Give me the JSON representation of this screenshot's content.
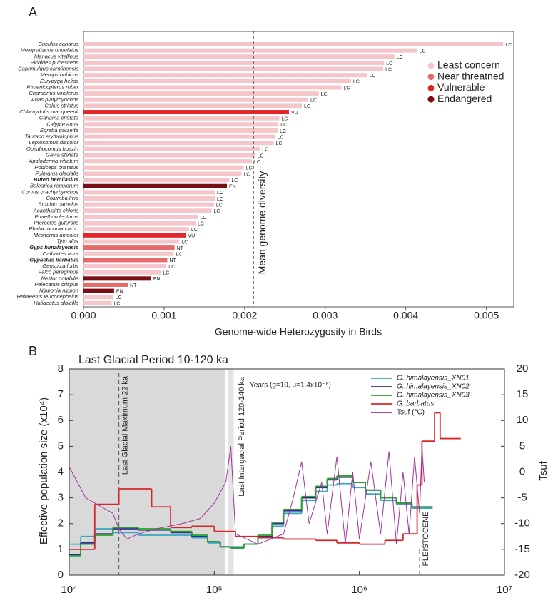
{
  "chart_data": [
    {
      "type": "hbar",
      "panel": "A",
      "categories": [
        "Cuculus canorus",
        "Melopsittacus undulatus",
        "Manacus vitellinus",
        "Picoides pubescens",
        "Caprimulgus carolinensis",
        "Merops nubicus",
        "Eurypyga helias",
        "Phoenicopterus ruber",
        "Charadrius vociferus",
        "Anas platyrhynchos",
        "Colius striatus",
        "Chlamydotis macqueenii",
        "Cariama cristata",
        "Calypte anna",
        "Egretta garzetta",
        "Tauraco erythrolophus",
        "Leptosomus discolor",
        "Opisthocomus hoazin",
        "Gavia stellata",
        "Apaloderma vittatum",
        "Podiceps cristatus",
        "Fulmarus glacialis",
        "Buteo hemilasius",
        "Balearica regulorum",
        "Corvus brachyrhynchos",
        "Columba livia",
        "Struthio camelus",
        "Acanthisitta chloris",
        "Phaethon lepturus",
        "Pterocles guturalis",
        "Phalacrocorax carbo",
        "Mesitornis unicolor",
        "Tyto alba",
        "Gyps himalayensis",
        "Cathartes aura",
        "Gypaetus barbatus",
        "Geospiza fortis",
        "Falco peregrinus",
        "Nestor notabilis",
        "Pelecanus crispus",
        "Nipponia nippon",
        "Haliaeetus leucocephalus",
        "Haliaeetus albicilla"
      ],
      "values": [
        0.00521,
        0.00414,
        0.00386,
        0.00373,
        0.00372,
        0.00352,
        0.00332,
        0.0032,
        0.00292,
        0.00279,
        0.00271,
        0.00255,
        0.00243,
        0.00242,
        0.00241,
        0.00238,
        0.00236,
        0.00219,
        0.00213,
        0.00209,
        0.00199,
        0.00196,
        0.00181,
        0.00178,
        0.00163,
        0.00163,
        0.00162,
        0.00159,
        0.00142,
        0.00139,
        0.00131,
        0.00127,
        0.00119,
        0.00113,
        0.00112,
        0.00104,
        0.00103,
        0.00096,
        0.00084,
        0.00055,
        0.00038,
        0.00037,
        0.00035
      ],
      "statuses": [
        "LC",
        "LC",
        "LC",
        "LC",
        "LC",
        "LC",
        "LC",
        "LC",
        "LC",
        "LC",
        "LC",
        "VU",
        "LC",
        "LC",
        "LC",
        "LC",
        "LC",
        "LC",
        "LC",
        "LC",
        "LC",
        "LC",
        "LC",
        "EN",
        "LC",
        "LC",
        "LC",
        "LC",
        "LC",
        "LC",
        "LC",
        "VU",
        "LC",
        "NT",
        "LC",
        "NT",
        "LC",
        "LC",
        "EN",
        "NT",
        "EN",
        "LC",
        "LC"
      ],
      "label_colors": [
        "#222",
        "#222",
        "#222",
        "#222",
        "#222",
        "#222",
        "#222",
        "#222",
        "#222",
        "#222",
        "#222",
        "#222",
        "#222",
        "#222",
        "#222",
        "#222",
        "#222",
        "#222",
        "#222",
        "#222",
        "#222",
        "#222",
        "#3b8fd9",
        "#222",
        "#222",
        "#222",
        "#222",
        "#222",
        "#222",
        "#222",
        "#222",
        "#222",
        "#222",
        "#3b8fd9",
        "#222",
        "#3b8fd9",
        "#222",
        "#222",
        "#222",
        "#222",
        "#222",
        "#222",
        "#222"
      ],
      "legend": [
        {
          "name": "Least concern",
          "code": "LC",
          "color": "#f4c6ca"
        },
        {
          "name": "Near threatned",
          "code": "NT",
          "color": "#e56a6a"
        },
        {
          "name": "Vulnerable",
          "code": "VU",
          "color": "#e2262b"
        },
        {
          "name": "Endangered",
          "code": "EN",
          "color": "#7a1014"
        }
      ],
      "mean": {
        "value": 0.00211,
        "label": "Mean genome diversity"
      },
      "xlabel": "Genome-wide Heterozygosity in Birds",
      "xlim": [
        0,
        0.00534
      ],
      "xticks": [
        {
          "value": 0,
          "label": "0.000"
        },
        0.001,
        0.002,
        0.003,
        0.004,
        0.005
      ]
    },
    {
      "type": "step",
      "panel": "B",
      "title": "Last Glacial Period 10-120 ka",
      "xscale": "log",
      "xlim": [
        10000,
        10000000
      ],
      "xticks": [
        {
          "value": 10000,
          "label": "10⁴"
        },
        {
          "value": 100000,
          "label": "10⁵"
        },
        {
          "value": 1000000,
          "label": "10⁶"
        },
        {
          "value": 10000000,
          "label": "10⁷"
        }
      ],
      "ylim": [
        0,
        8
      ],
      "yticks": [
        0,
        1,
        2,
        3,
        4,
        5,
        6,
        7,
        8
      ],
      "y2lim": [
        -20,
        20
      ],
      "y2ticks": [
        -20,
        -15,
        -10,
        -5,
        0,
        5,
        10,
        15,
        20
      ],
      "ylabel": "Effective population size (x10⁴)",
      "y2label": "Tsuf",
      "regions": [
        {
          "x": [
            10000,
            118000
          ],
          "color": "#d9d9d9"
        },
        {
          "x": [
            125000,
            136000
          ],
          "color": "#e3e3e3"
        }
      ],
      "annotations": [
        {
          "text": "Last Glacial Maximum 22 ka",
          "x": 22000
        },
        {
          "text": "Last Intergacial Period 120-140 ka",
          "x": 140000
        },
        {
          "text": "PLEISTOCENE",
          "x": 2600000
        },
        {
          "text": "Years (g=10, μ=1.4x10⁻⁸)"
        }
      ],
      "series": [
        {
          "name": "G. himalayensis_XN01",
          "color": "#3aa6c0",
          "edges": [
            10000,
            12000,
            15000,
            20000,
            30000,
            50000,
            70000,
            90000,
            110000,
            130000,
            160000,
            200000,
            250000,
            300000,
            400000,
            500000,
            600000,
            700000,
            900000,
            1100000,
            1400000,
            1800000,
            2300000,
            3200000
          ],
          "values": [
            1.2,
            1.5,
            1.8,
            1.65,
            1.55,
            1.55,
            1.45,
            1.25,
            1.1,
            1.1,
            1.2,
            1.45,
            1.9,
            2.4,
            2.9,
            3.25,
            3.5,
            3.55,
            3.4,
            3.15,
            2.9,
            2.75,
            2.6
          ]
        },
        {
          "name": "G. himalayensis_XN02",
          "color": "#2b2f8f",
          "edges": [
            10000,
            12000,
            15000,
            20000,
            30000,
            50000,
            70000,
            90000,
            110000,
            130000,
            160000,
            200000,
            250000,
            300000,
            400000,
            500000,
            600000,
            700000,
            900000,
            1100000,
            1400000,
            1800000,
            2300000,
            3200000
          ],
          "values": [
            0.8,
            1.25,
            1.6,
            1.8,
            1.75,
            1.65,
            1.5,
            1.3,
            1.1,
            1.05,
            1.2,
            1.5,
            2.0,
            2.5,
            3.0,
            3.4,
            3.7,
            3.8,
            3.6,
            3.3,
            3.0,
            2.8,
            2.65
          ]
        },
        {
          "name": "G. himalayensis_XN03",
          "color": "#2ca02c",
          "edges": [
            10000,
            12000,
            15000,
            20000,
            30000,
            50000,
            70000,
            90000,
            110000,
            130000,
            160000,
            200000,
            250000,
            300000,
            400000,
            500000,
            600000,
            700000,
            900000,
            1100000,
            1400000,
            1800000,
            2300000,
            3200000
          ],
          "values": [
            0.75,
            1.2,
            1.55,
            1.85,
            1.8,
            1.7,
            1.55,
            1.3,
            1.1,
            1.05,
            1.2,
            1.55,
            2.05,
            2.55,
            3.05,
            3.45,
            3.75,
            3.85,
            3.6,
            3.3,
            3.0,
            2.8,
            2.65
          ]
        },
        {
          "name": "G. barbatus",
          "color": "#d62728",
          "edges": [
            10000,
            15000,
            22000,
            37000,
            50000,
            70000,
            100000,
            140000,
            200000,
            300000,
            500000,
            700000,
            1000000,
            1500000,
            2000000,
            2500000,
            2700000,
            3300000,
            3600000,
            5000000
          ],
          "values": [
            1.0,
            2.75,
            3.35,
            2.65,
            1.85,
            1.9,
            1.7,
            1.5,
            1.45,
            1.4,
            1.35,
            1.25,
            1.2,
            1.35,
            1.6,
            3.5,
            5.2,
            6.3,
            5.3
          ]
        },
        {
          "name": "Tsuf  (°C)",
          "color": "#a0339b",
          "axis": "y2",
          "kind": "line",
          "x": [
            10000,
            13000,
            20000,
            22000,
            25000,
            30000,
            40000,
            60000,
            80000,
            100000,
            120000,
            130000,
            140000,
            200000,
            300000,
            350000,
            400000,
            450000,
            550000,
            600000,
            700000,
            800000,
            900000,
            1000000,
            1200000,
            1400000,
            1600000,
            1800000,
            2000000,
            2200000,
            2400000,
            2600000,
            2700000,
            2800000
          ],
          "values": [
            1,
            -5,
            -8,
            -11,
            -13,
            -12,
            -11,
            -10,
            -9,
            -6,
            -2,
            5,
            -12,
            -14,
            -12,
            -5,
            2,
            -10,
            -2,
            -12,
            3,
            -14,
            0,
            -13,
            2,
            -12,
            4,
            -14,
            0,
            -12,
            3,
            -8,
            5,
            -2
          ]
        }
      ]
    }
  ]
}
